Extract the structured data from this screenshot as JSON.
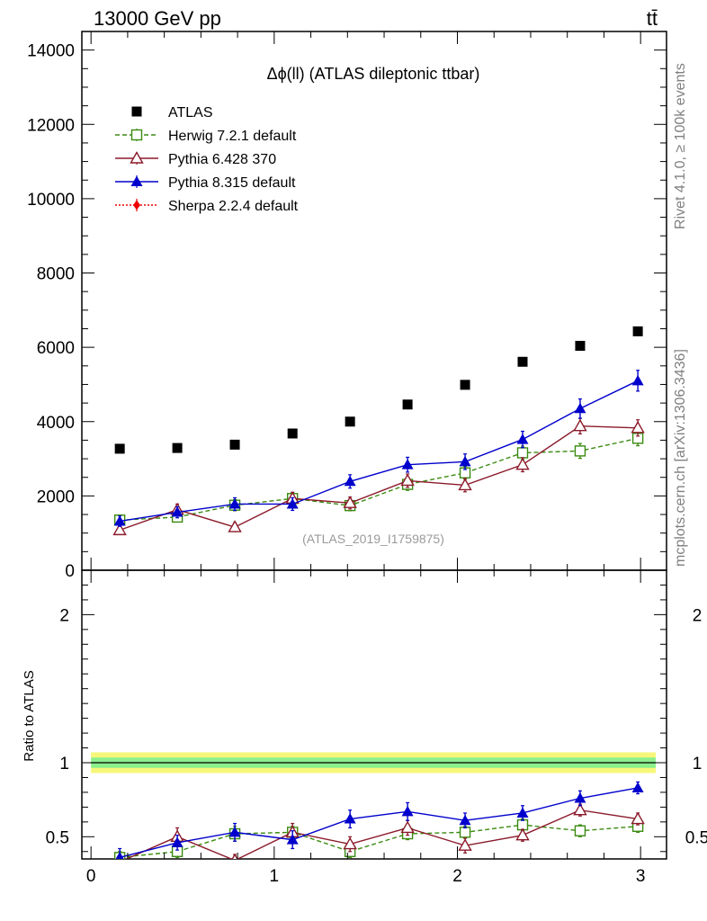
{
  "header": {
    "left": "13000 GeV pp",
    "right": "tt̄"
  },
  "side_labels": {
    "rivet": "Rivet 4.1.0, ≥ 100k events",
    "mcplots": "mcplots.cern.ch [arXiv:1306.3436]"
  },
  "chart_data": [
    {
      "type": "scatter",
      "panel": "main",
      "title": "Δϕ(ll) (ATLAS dileptonic ttbar)",
      "watermark": "(ATLAS_2019_I1759875)",
      "xlabel": "",
      "ylabel": "",
      "xlim": [
        -0.05,
        3.1416
      ],
      "ylim": [
        0,
        14500
      ],
      "y_ticks": [
        0,
        2000,
        4000,
        6000,
        8000,
        10000,
        12000,
        14000
      ],
      "y_tick_labels": [
        "0",
        "2000",
        "4000",
        "6000",
        "8000",
        "10000",
        "12000",
        "14000"
      ],
      "x": [
        0.157,
        0.471,
        0.785,
        1.1,
        1.414,
        1.728,
        2.042,
        2.356,
        2.67,
        2.985
      ],
      "series": [
        {
          "name": "ATLAS",
          "color": "#000000",
          "marker": "filled-square",
          "line": "none",
          "values": [
            3270,
            3290,
            3380,
            3680,
            4000,
            4460,
            4990,
            5610,
            6040,
            6430
          ]
        },
        {
          "name": "Herwig 7.2.1 default",
          "color": "#3a8a10",
          "marker": "open-square",
          "line": "dashed",
          "values": [
            1350,
            1430,
            1750,
            1930,
            1740,
            2310,
            2620,
            3160,
            3210,
            3550
          ],
          "errors": [
            120,
            130,
            150,
            150,
            140,
            160,
            170,
            180,
            200,
            200
          ]
        },
        {
          "name": "Pythia 6.428 370",
          "color": "#8b1a2a",
          "marker": "open-triangle",
          "line": "solid",
          "values": [
            1080,
            1630,
            1160,
            1930,
            1810,
            2410,
            2290,
            2840,
            3880,
            3830
          ],
          "errors": [
            120,
            150,
            120,
            170,
            160,
            180,
            180,
            190,
            210,
            220
          ]
        },
        {
          "name": "Pythia 8.315 default",
          "color": "#0000cc",
          "marker": "filled-triangle",
          "line": "solid",
          "values": [
            1320,
            1560,
            1780,
            1780,
            2390,
            2840,
            2920,
            3520,
            4350,
            5100
          ],
          "errors": [
            140,
            150,
            170,
            170,
            180,
            200,
            210,
            220,
            260,
            280
          ]
        },
        {
          "name": "Sherpa 2.2.4 default",
          "color": "#ee0000",
          "marker": "filled-diamond",
          "line": "dotted",
          "values": []
        }
      ]
    },
    {
      "type": "scatter",
      "panel": "ratio",
      "ylabel": "Ratio to ATLAS",
      "xlim": [
        -0.05,
        3.1416
      ],
      "ylim": [
        0.35,
        2.3
      ],
      "x_ticks": [
        0,
        1,
        2,
        3
      ],
      "x_tick_labels": [
        "0",
        "1",
        "2",
        "3"
      ],
      "y_ticks": [
        0.5,
        1,
        2
      ],
      "y_tick_labels": [
        "0.5",
        "1",
        "2"
      ],
      "reference_line": 1,
      "x": [
        0.157,
        0.471,
        0.785,
        1.1,
        1.414,
        1.728,
        2.042,
        2.356,
        2.67,
        2.985
      ],
      "series": [
        {
          "name": "Herwig 7.2.1 default",
          "color": "#3a8a10",
          "marker": "open-square",
          "line": "dashed",
          "values": [
            0.36,
            0.4,
            0.52,
            0.53,
            0.4,
            0.52,
            0.53,
            0.58,
            0.54,
            0.57
          ],
          "errors": [
            0.04,
            0.04,
            0.05,
            0.04,
            0.04,
            0.04,
            0.04,
            0.04,
            0.04,
            0.04
          ]
        },
        {
          "name": "Pythia 6.428 370",
          "color": "#8b1a2a",
          "marker": "open-triangle",
          "line": "solid",
          "values": [
            0.33,
            0.5,
            0.34,
            0.53,
            0.45,
            0.56,
            0.44,
            0.51,
            0.68,
            0.62
          ],
          "errors": [
            0.04,
            0.06,
            0.04,
            0.06,
            0.05,
            0.05,
            0.05,
            0.04,
            0.04,
            0.04
          ]
        },
        {
          "name": "Pythia 8.315 default",
          "color": "#0000cc",
          "marker": "filled-triangle",
          "line": "solid",
          "values": [
            0.36,
            0.46,
            0.53,
            0.48,
            0.62,
            0.67,
            0.61,
            0.66,
            0.76,
            0.83
          ],
          "errors": [
            0.06,
            0.05,
            0.06,
            0.06,
            0.06,
            0.06,
            0.05,
            0.05,
            0.05,
            0.04
          ]
        }
      ]
    }
  ]
}
